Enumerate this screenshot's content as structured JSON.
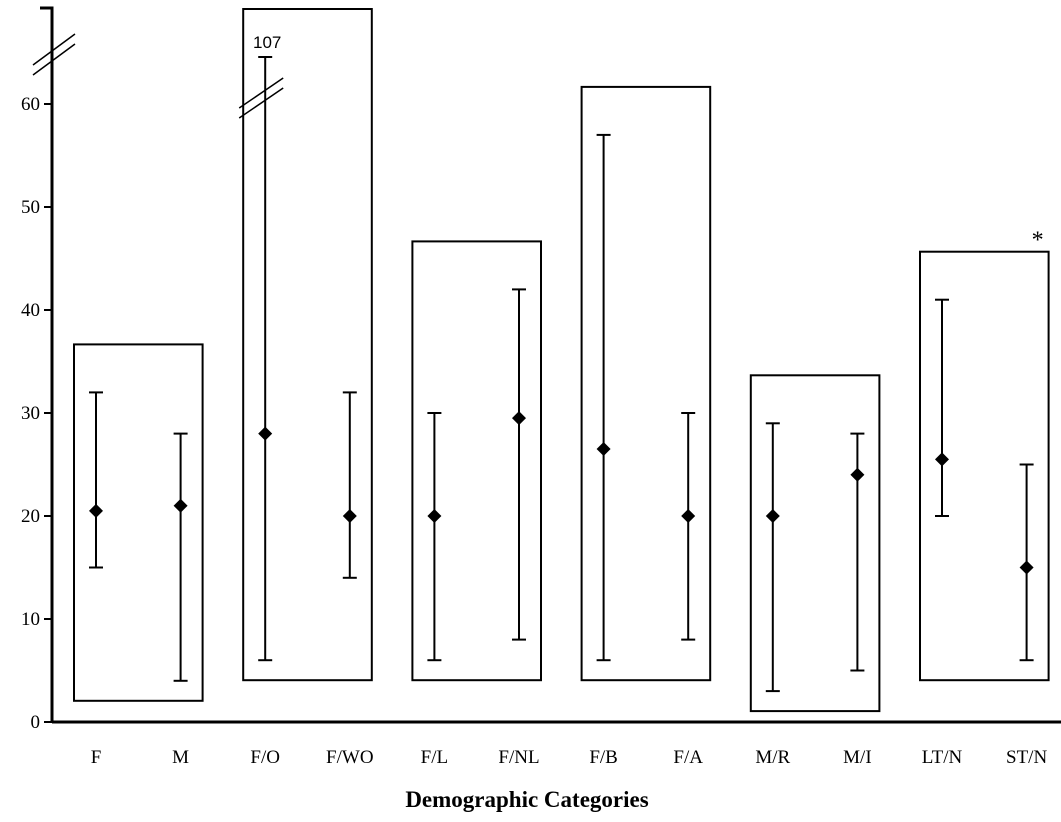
{
  "chart_data": {
    "type": "scatter",
    "subtype": "median-with-range",
    "title": "",
    "xlabel": "Demographic Categories",
    "ylabel": "",
    "ylim": [
      0,
      70
    ],
    "yticks": [
      0,
      10,
      20,
      30,
      40,
      50,
      60
    ],
    "y_axis_break": true,
    "grid": false,
    "legend": "none",
    "categories": [
      "F",
      "M",
      "F/O",
      "F/WO",
      "F/L",
      "F/NL",
      "F/B",
      "F/A",
      "M/R",
      "M/I",
      "LT/N",
      "ST/N"
    ],
    "series": [
      {
        "points": [
          {
            "category": "F",
            "value": 20.5,
            "low": 15,
            "high": 32
          },
          {
            "category": "M",
            "value": 21,
            "low": 4,
            "high": 28
          },
          {
            "category": "F/O",
            "value": 28,
            "low": 6,
            "high": 107,
            "high_label": "107",
            "broken": true
          },
          {
            "category": "F/WO",
            "value": 20,
            "low": 14,
            "high": 32
          },
          {
            "category": "F/L",
            "value": 20,
            "low": 6,
            "high": 30
          },
          {
            "category": "F/NL",
            "value": 29.5,
            "low": 8,
            "high": 42
          },
          {
            "category": "F/B",
            "value": 26.5,
            "low": 6,
            "high": 57
          },
          {
            "category": "F/A",
            "value": 20,
            "low": 8,
            "high": 30
          },
          {
            "category": "M/R",
            "value": 20,
            "low": 3,
            "high": 29
          },
          {
            "category": "M/I",
            "value": 24,
            "low": 5,
            "high": 28
          },
          {
            "category": "LT/N",
            "value": 25.5,
            "low": 20,
            "high": 41
          },
          {
            "category": "ST/N",
            "value": 15,
            "low": 6,
            "high": 25
          }
        ]
      }
    ],
    "groups": [
      {
        "categories": [
          "F",
          "M"
        ]
      },
      {
        "categories": [
          "F/O",
          "F/WO"
        ]
      },
      {
        "categories": [
          "F/L",
          "F/NL"
        ]
      },
      {
        "categories": [
          "F/B",
          "F/A"
        ]
      },
      {
        "categories": [
          "M/R",
          "M/I"
        ]
      },
      {
        "categories": [
          "LT/N",
          "ST/N"
        ],
        "annotation": "*"
      }
    ],
    "colors": {
      "ink": "#000000",
      "background": "#ffffff"
    }
  }
}
